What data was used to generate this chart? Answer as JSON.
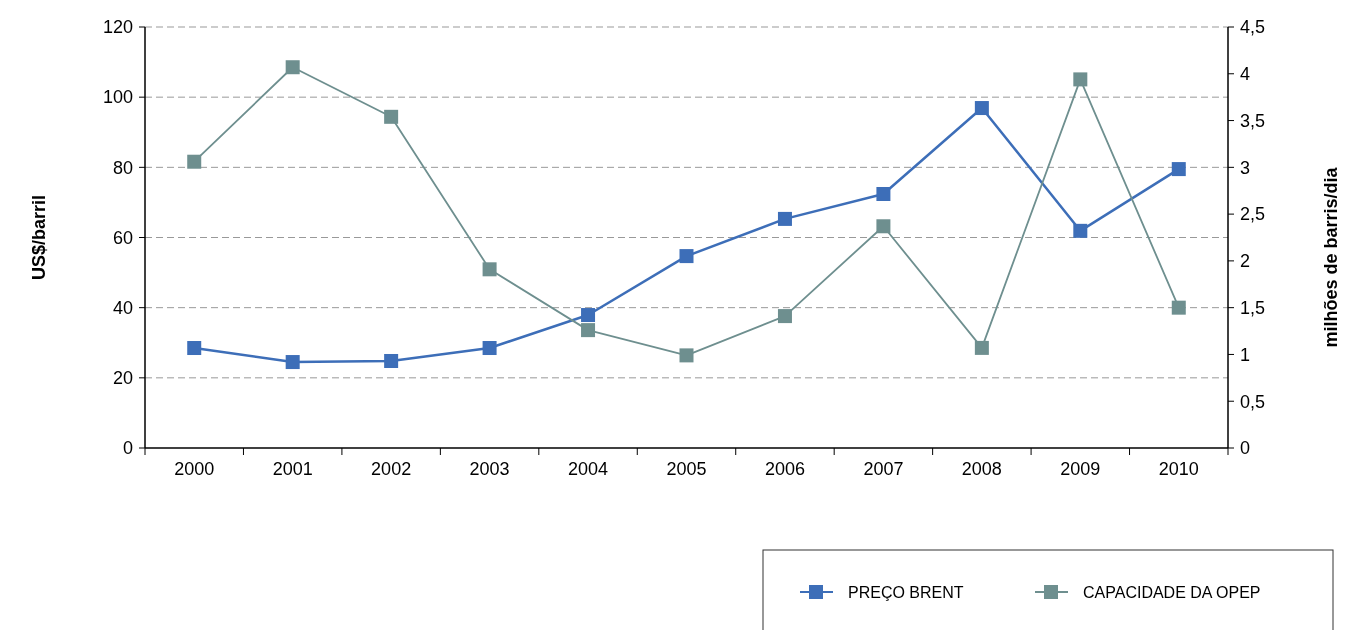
{
  "chart_data": {
    "type": "line",
    "ylabel": "US$/barril",
    "y2label": "milhões de barris/dia",
    "categories": [
      "2000",
      "2001",
      "2002",
      "2003",
      "2004",
      "2005",
      "2006",
      "2007",
      "2008",
      "2009",
      "2010"
    ],
    "series": [
      {
        "name": "PREÇO BRENT",
        "color": "#3d6eb8",
        "values": [
          28.5,
          24.5,
          24.8,
          28.5,
          37.9,
          54.7,
          65.3,
          72.4,
          96.9,
          61.9,
          79.5
        ]
      },
      {
        "name": "CAPACIDADE DA OPEP",
        "color": "#6e8f8f",
        "axis": "y2",
        "values": [
          3.06,
          4.07,
          3.54,
          1.91,
          1.26,
          0.99,
          1.41,
          2.37,
          1.07,
          3.94,
          1.5
        ]
      }
    ],
    "ylim": [
      0,
      120
    ],
    "yticks": [
      0,
      20,
      40,
      60,
      80,
      100,
      120
    ],
    "y2lim": [
      0,
      4.5
    ],
    "y2ticks": [
      {
        "value": 0,
        "label": "0"
      },
      {
        "value": 0.5,
        "label": "0,5"
      },
      {
        "value": 1,
        "label": "1"
      },
      {
        "value": 1.5,
        "label": "1,5"
      },
      {
        "value": 2,
        "label": "2"
      },
      {
        "value": 2.5,
        "label": "2,5"
      },
      {
        "value": 3,
        "label": "3"
      },
      {
        "value": 3.5,
        "label": "3,5"
      },
      {
        "value": 4,
        "label": "4"
      },
      {
        "value": 4.5,
        "label": "4,5"
      }
    ],
    "grid": "y",
    "legend": "bottom right",
    "marker": "square",
    "line_style": "solid"
  }
}
